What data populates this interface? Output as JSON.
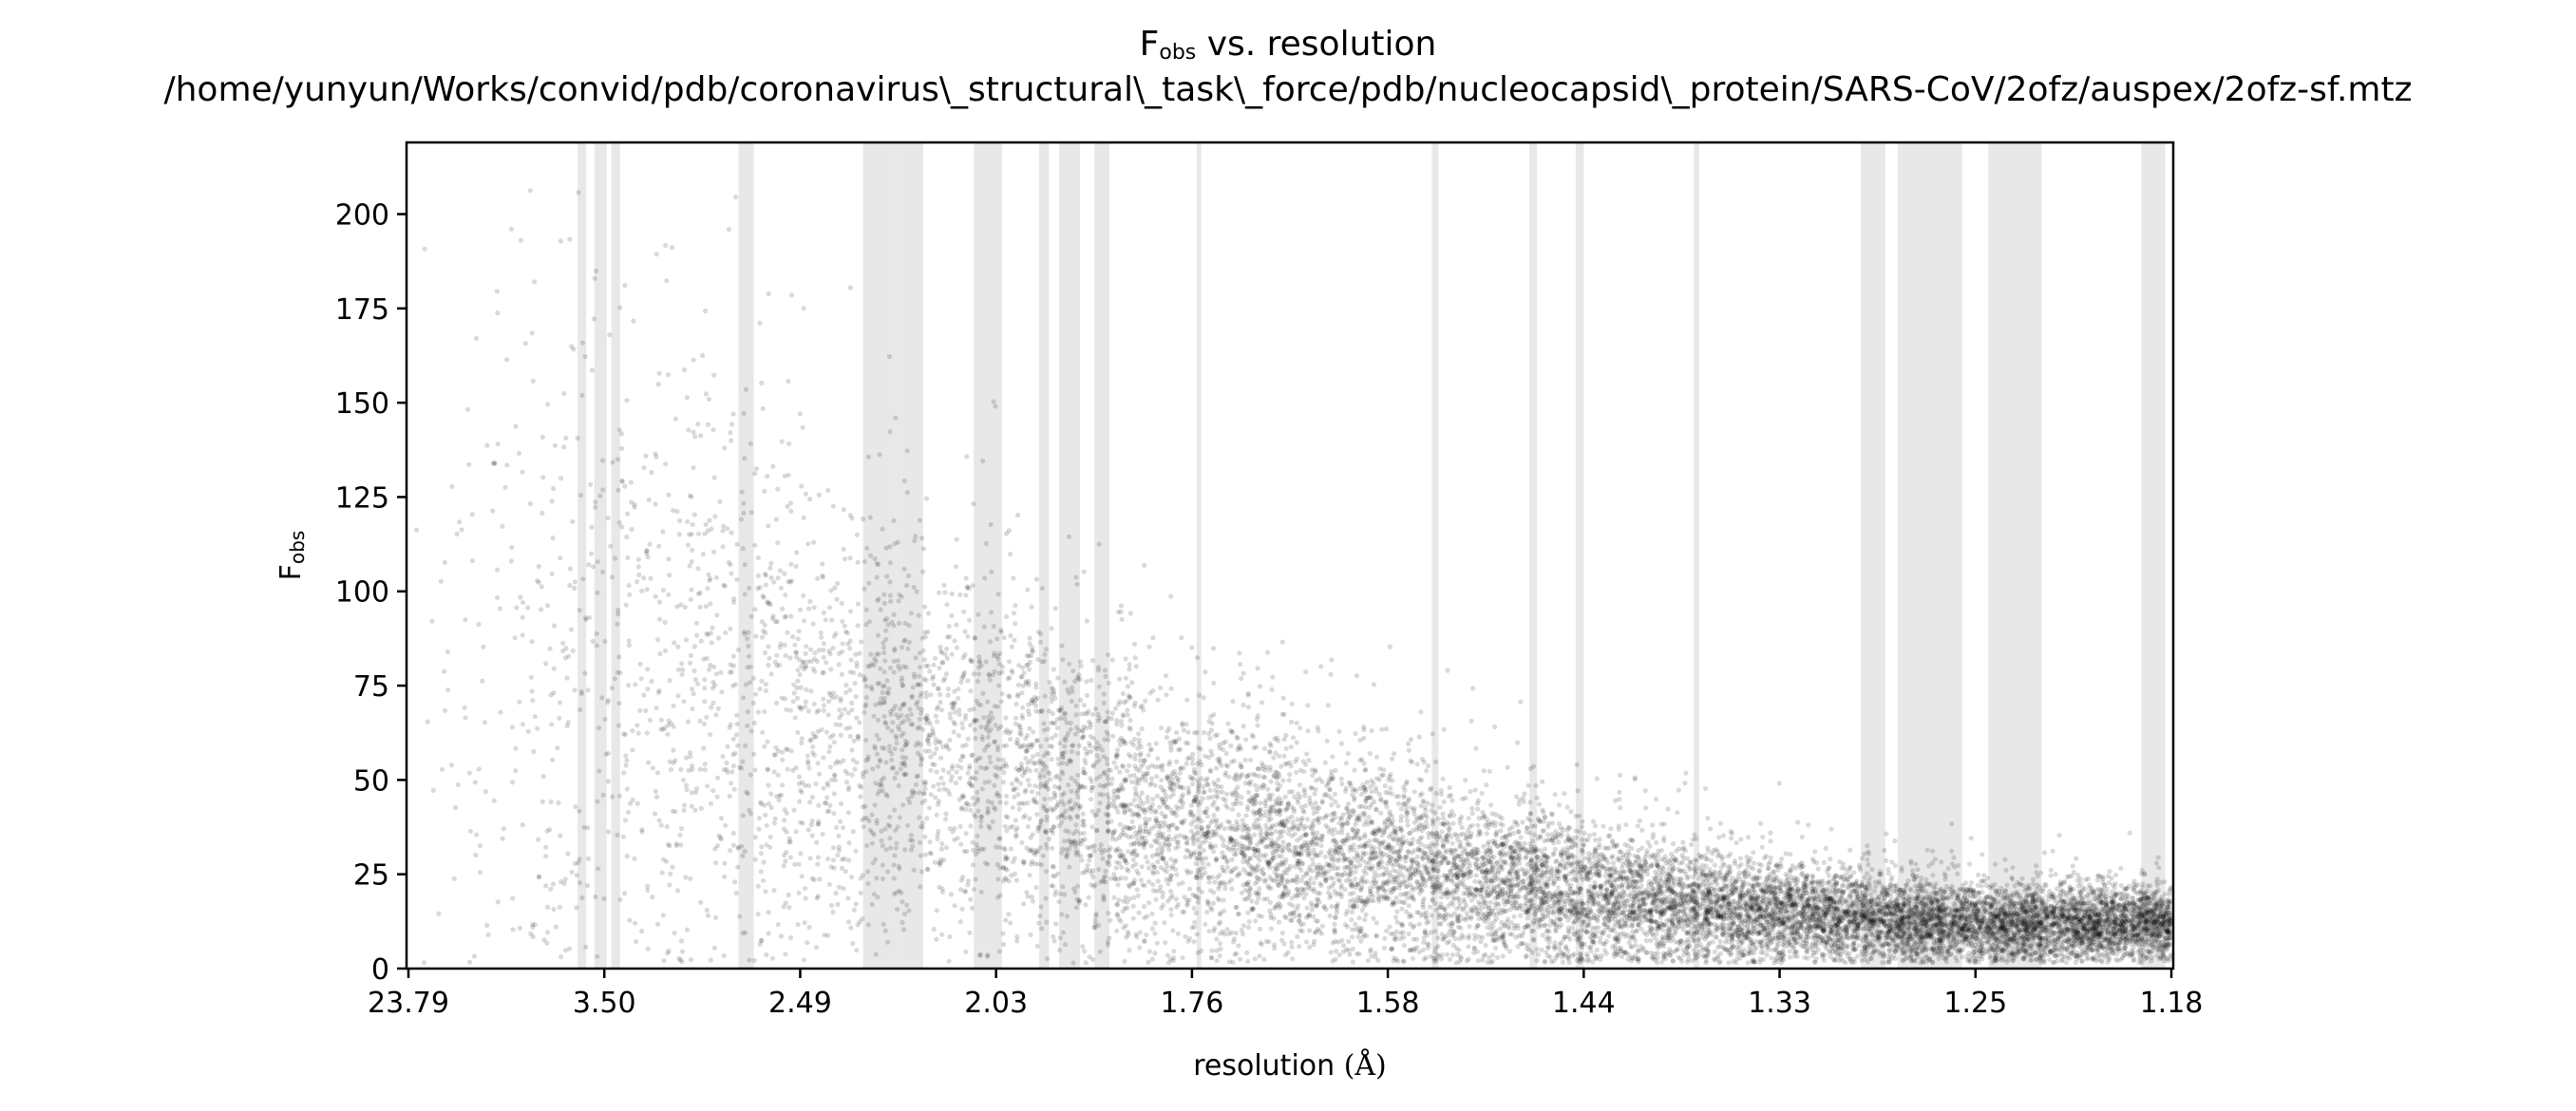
{
  "figure": {
    "title_main": "F",
    "title_sub": "obs",
    "title_rest": " vs. resolution",
    "path": "/home/yunyun/Works/convid/pdb/coronavirus\\_structural\\_task\\_force/pdb/nucleocapsid\\_protein/SARS-CoV/2ofz/auspex/2ofz-sf.mtz"
  },
  "chart_data": {
    "type": "scatter",
    "title": "F_obs vs. resolution",
    "subtitle": "/home/yunyun/Works/convid/pdb/coronavirus\\_structural\\_task\\_force/pdb/nucleocapsid\\_protein/SARS-CoV/2ofz/auspex/2ofz-sf.mtz",
    "x_axis": {
      "label_text": "resolution ",
      "label_unit": "(Å)",
      "scale": "1/d^2 (reciprocal squared resolution, labelled in Å)",
      "range_angstrom": [
        23.79,
        1.18
      ],
      "tick_labels": [
        "23.79",
        "3.50",
        "2.49",
        "2.03",
        "1.76",
        "1.58",
        "1.44",
        "1.33",
        "1.25",
        "1.18"
      ]
    },
    "y_axis": {
      "label_main": "F",
      "label_sub": "obs",
      "ylim": [
        0,
        219
      ],
      "ticks": [
        0,
        25,
        50,
        75,
        100,
        125,
        150,
        175,
        200
      ],
      "tick_labels": [
        "0",
        "25",
        "50",
        "75",
        "100",
        "125",
        "150",
        "175",
        "200"
      ]
    },
    "grid": false,
    "legend": "none",
    "point_color": "#000000",
    "point_opacity": 0.15,
    "band_color": "#e8e8e8",
    "highlighted_resolution_bands_angstrom": [
      [
        3.76,
        3.67
      ],
      [
        3.59,
        3.48
      ],
      [
        3.44,
        3.37
      ],
      [
        2.71,
        2.65
      ],
      [
        2.31,
        2.23
      ],
      [
        2.23,
        2.17
      ],
      [
        2.07,
        2.02
      ],
      [
        1.96,
        1.945
      ],
      [
        1.93,
        1.9
      ],
      [
        1.88,
        1.86
      ],
      [
        1.755,
        1.75
      ],
      [
        1.545,
        1.54
      ],
      [
        1.475,
        1.47
      ],
      [
        1.445,
        1.44
      ],
      [
        1.375,
        1.372
      ],
      [
        1.295,
        1.285
      ],
      [
        1.28,
        1.255
      ],
      [
        1.245,
        1.225
      ],
      [
        1.19,
        1.182
      ]
    ],
    "distribution": {
      "description_bins_angstrom": [
        "23.79-3.50",
        "3.50-2.49",
        "2.49-2.03",
        "2.03-1.76",
        "1.76-1.58",
        "1.58-1.44",
        "1.44-1.33",
        "1.33-1.25",
        "1.25-1.18"
      ],
      "median_F_obs": [
        75,
        85,
        70,
        55,
        38,
        28,
        20,
        15,
        12
      ],
      "spread_F_obs": [
        70,
        55,
        40,
        28,
        20,
        15,
        11,
        8,
        6
      ],
      "upper_F_obs": [
        219,
        219,
        200,
        150,
        100,
        90,
        85,
        70,
        62
      ]
    }
  }
}
